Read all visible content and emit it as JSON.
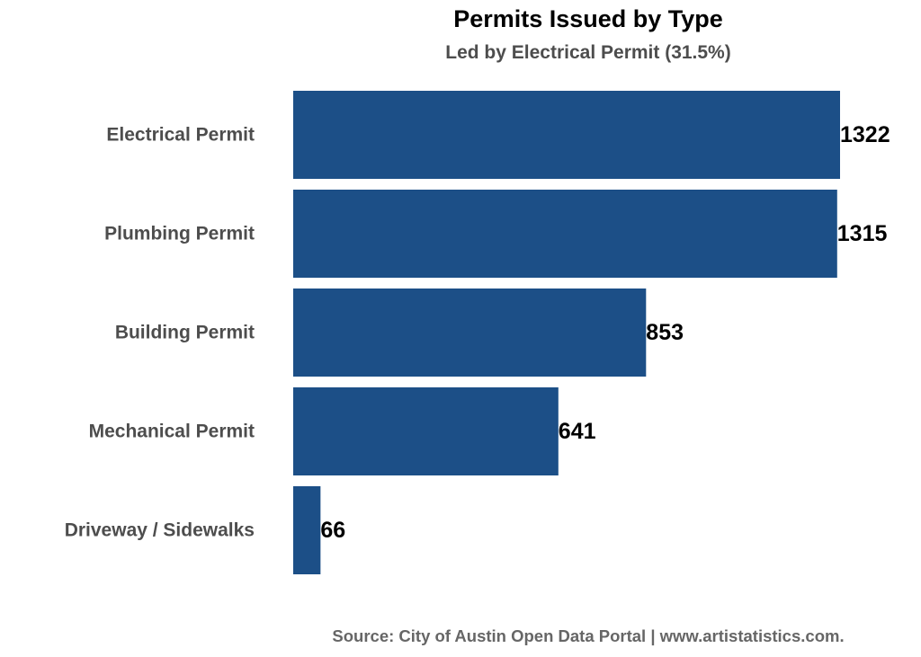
{
  "chart_data": {
    "type": "bar",
    "orientation": "horizontal",
    "title": "Permits Issued by Type",
    "subtitle": "Led by Electrical Permit (31.5%)",
    "caption": "Source: City of Austin Open Data Portal | www.artistatistics.com.",
    "categories": [
      "Electrical Permit",
      "Plumbing Permit",
      "Building Permit",
      "Mechanical Permit",
      "Driveway / Sidewalks"
    ],
    "values": [
      1322,
      1315,
      853,
      641,
      66
    ],
    "xlabel": "",
    "ylabel": "",
    "xlim": [
      0,
      1322
    ],
    "grid": false,
    "legend": "none",
    "bar_color": "#1c4f87"
  }
}
